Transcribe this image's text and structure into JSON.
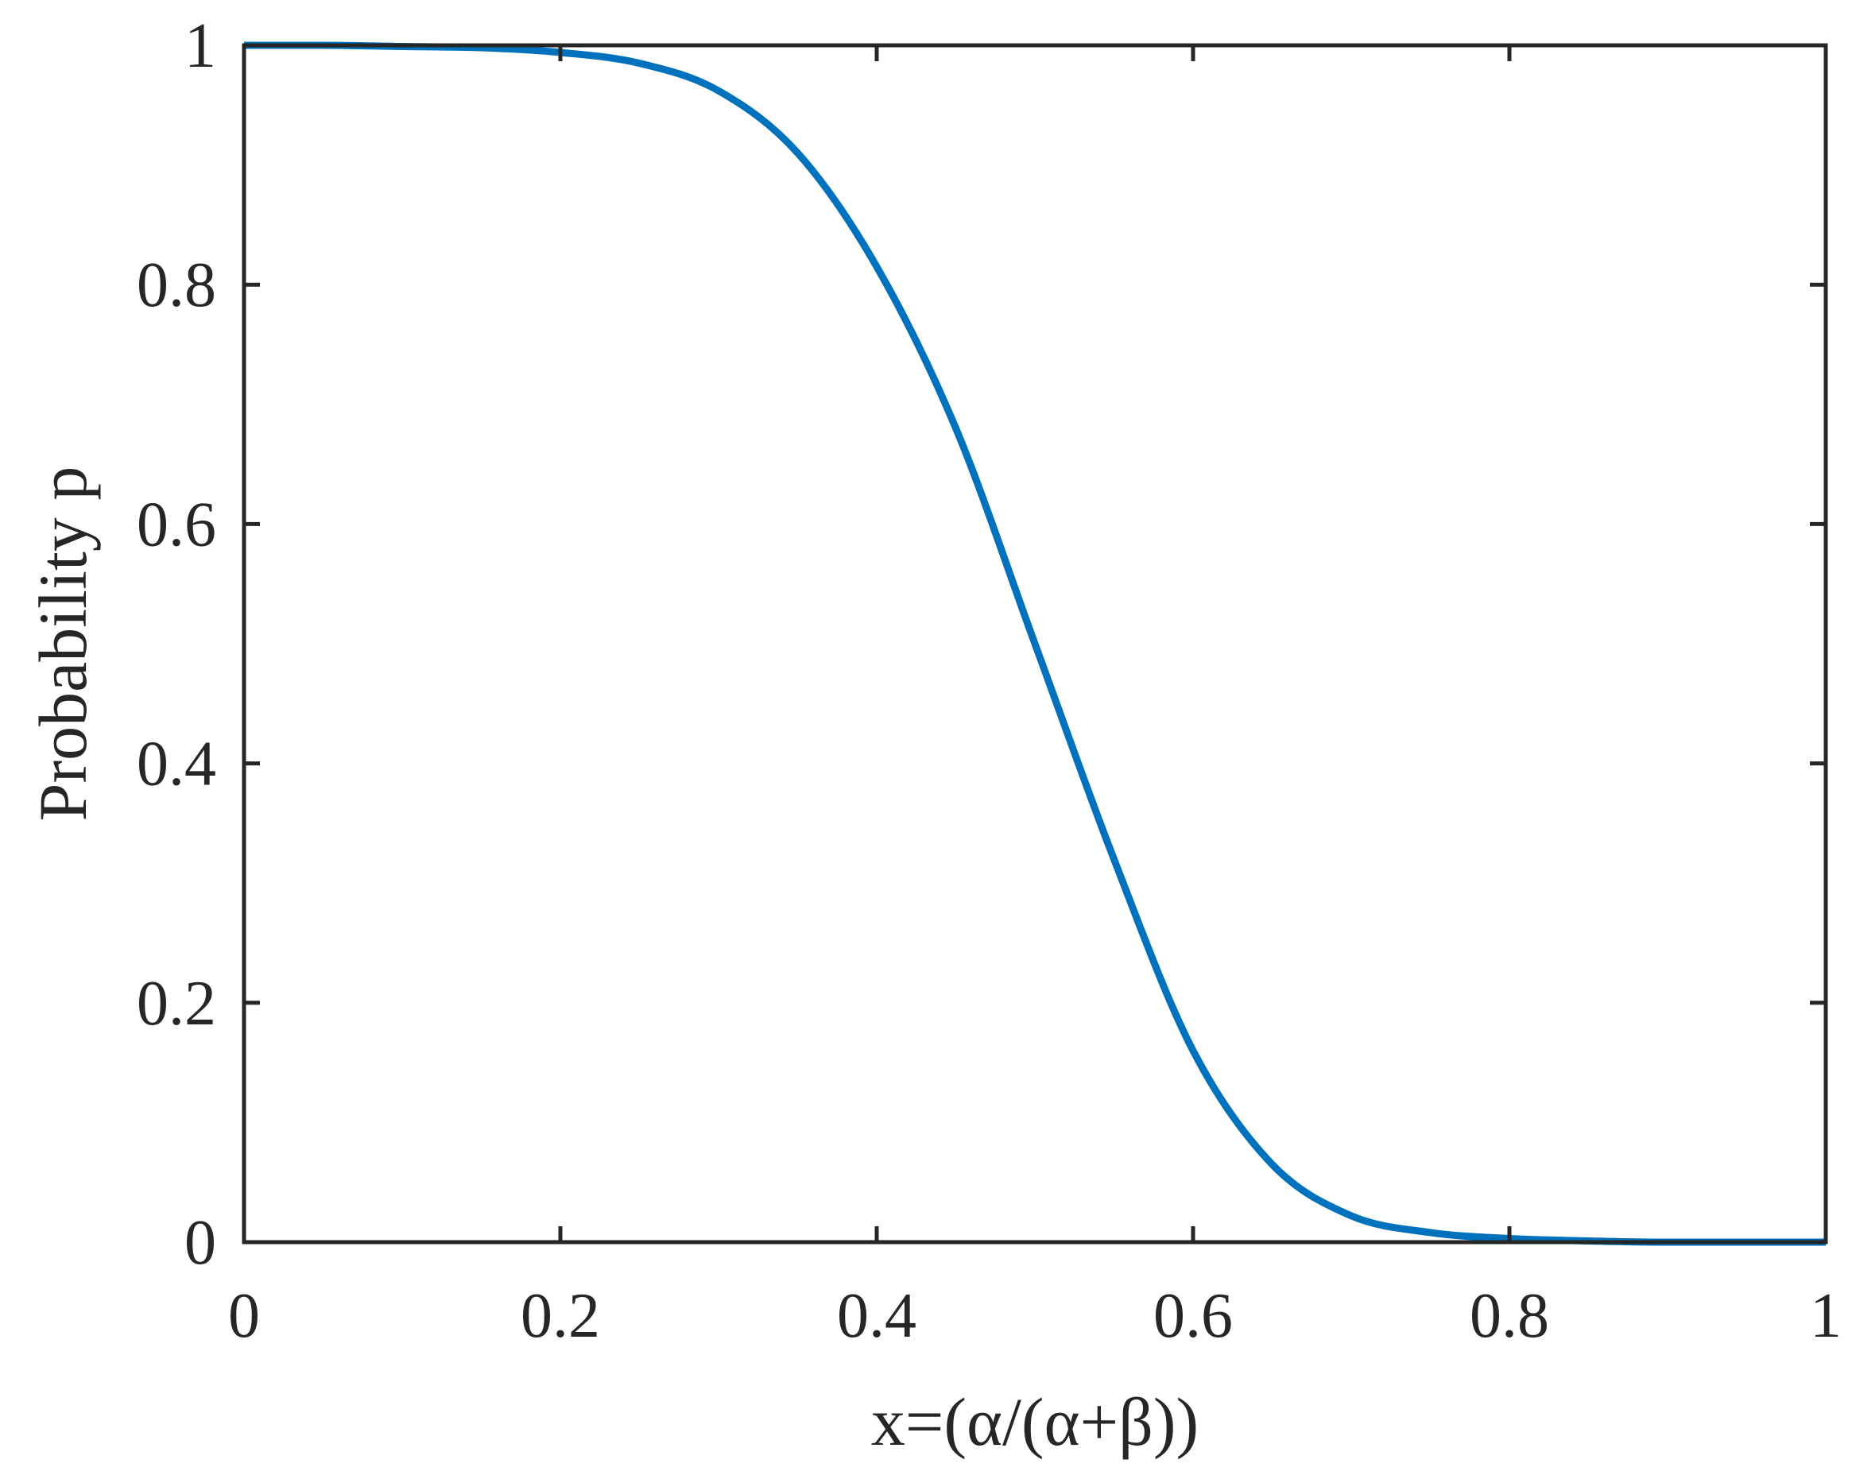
{
  "chart_data": {
    "type": "line",
    "title": "",
    "xlabel": "x=(α/(α+β))",
    "ylabel": "Probability p",
    "xlim": [
      0,
      1
    ],
    "ylim": [
      0,
      1
    ],
    "xticks": [
      0,
      0.2,
      0.4,
      0.6,
      0.8,
      1
    ],
    "xtick_labels": [
      "0",
      "0.2",
      "0.4",
      "0.6",
      "0.8",
      "1"
    ],
    "yticks": [
      0,
      0.2,
      0.4,
      0.6,
      0.8,
      1
    ],
    "ytick_labels": [
      "0",
      "0.2",
      "0.4",
      "0.6",
      "0.8",
      "1"
    ],
    "grid": false,
    "box": true,
    "series": [
      {
        "color": "#0072BD",
        "x": [
          0,
          0.05,
          0.1,
          0.15,
          0.2,
          0.25,
          0.3,
          0.35,
          0.4,
          0.45,
          0.5,
          0.55,
          0.6,
          0.65,
          0.7,
          0.75,
          0.8,
          0.85,
          0.9,
          0.95,
          1
        ],
        "y": [
          1.0,
          1.0,
          0.999,
          0.998,
          0.994,
          0.985,
          0.962,
          0.91,
          0.815,
          0.68,
          0.5,
          0.32,
          0.16,
          0.065,
          0.022,
          0.008,
          0.003,
          0.001,
          0.0,
          0.0,
          0.0
        ]
      }
    ]
  }
}
